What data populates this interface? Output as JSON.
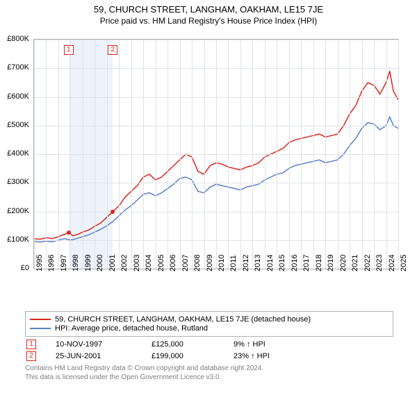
{
  "title": "59, CHURCH STREET, LANGHAM, OAKHAM, LE15 7JE",
  "subtitle": "Price paid vs. HM Land Registry's House Price Index (HPI)",
  "chart": {
    "type": "line",
    "background_color": "#ffffff",
    "grid_color": "#dfe3e8",
    "border_color": "#aeb2b7",
    "shade_color": "#eef2fa",
    "ylim": [
      0,
      800000
    ],
    "ytick_step": 100000,
    "yticks": [
      "£0",
      "£100K",
      "£200K",
      "£300K",
      "£400K",
      "£500K",
      "£600K",
      "£700K",
      "£800K"
    ],
    "xlim": [
      1995,
      2025
    ],
    "xticks": [
      1995,
      1996,
      1997,
      1998,
      1999,
      2000,
      2001,
      2002,
      2003,
      2004,
      2005,
      2006,
      2007,
      2008,
      2009,
      2010,
      2011,
      2012,
      2013,
      2014,
      2015,
      2016,
      2017,
      2018,
      2019,
      2020,
      2021,
      2022,
      2023,
      2024,
      2025
    ],
    "series": [
      {
        "name": "59, CHURCH STREET, LANGHAM, OAKHAM, LE15 7JE (detached house)",
        "color": "#d9261c",
        "line_width": 1.5,
        "data": [
          [
            1995,
            105
          ],
          [
            1995.5,
            103
          ],
          [
            1996,
            108
          ],
          [
            1996.5,
            105
          ],
          [
            1997,
            112
          ],
          [
            1997.5,
            120
          ],
          [
            1997.86,
            125
          ],
          [
            1998.2,
            115
          ],
          [
            1998.6,
            120
          ],
          [
            1999,
            128
          ],
          [
            1999.5,
            135
          ],
          [
            2000,
            148
          ],
          [
            2000.5,
            160
          ],
          [
            2001,
            180
          ],
          [
            2001.48,
            199
          ],
          [
            2002,
            220
          ],
          [
            2002.5,
            250
          ],
          [
            2003,
            270
          ],
          [
            2003.5,
            290
          ],
          [
            2004,
            320
          ],
          [
            2004.5,
            330
          ],
          [
            2005,
            310
          ],
          [
            2005.5,
            320
          ],
          [
            2006,
            340
          ],
          [
            2006.5,
            360
          ],
          [
            2007,
            380
          ],
          [
            2007.5,
            400
          ],
          [
            2008,
            390
          ],
          [
            2008.5,
            340
          ],
          [
            2009,
            330
          ],
          [
            2009.5,
            360
          ],
          [
            2010,
            370
          ],
          [
            2010.5,
            365
          ],
          [
            2011,
            355
          ],
          [
            2011.5,
            350
          ],
          [
            2012,
            345
          ],
          [
            2012.5,
            355
          ],
          [
            2013,
            360
          ],
          [
            2013.5,
            370
          ],
          [
            2014,
            390
          ],
          [
            2014.5,
            400
          ],
          [
            2015,
            410
          ],
          [
            2015.5,
            420
          ],
          [
            2016,
            440
          ],
          [
            2016.5,
            450
          ],
          [
            2017,
            455
          ],
          [
            2017.5,
            460
          ],
          [
            2018,
            465
          ],
          [
            2018.5,
            470
          ],
          [
            2019,
            460
          ],
          [
            2019.5,
            465
          ],
          [
            2020,
            470
          ],
          [
            2020.5,
            500
          ],
          [
            2021,
            540
          ],
          [
            2021.5,
            570
          ],
          [
            2022,
            620
          ],
          [
            2022.5,
            650
          ],
          [
            2023,
            640
          ],
          [
            2023.5,
            610
          ],
          [
            2024,
            650
          ],
          [
            2024.3,
            690
          ],
          [
            2024.6,
            620
          ],
          [
            2025,
            590
          ]
        ]
      },
      {
        "name": "HPI: Average price, detached house, Rutland",
        "color": "#5a7fc7",
        "line_width": 1.5,
        "data": [
          [
            1995,
            95
          ],
          [
            1995.5,
            93
          ],
          [
            1996,
            96
          ],
          [
            1996.5,
            94
          ],
          [
            1997,
            100
          ],
          [
            1997.5,
            105
          ],
          [
            1998,
            100
          ],
          [
            1998.5,
            105
          ],
          [
            1999,
            112
          ],
          [
            1999.5,
            118
          ],
          [
            2000,
            128
          ],
          [
            2000.5,
            138
          ],
          [
            2001,
            150
          ],
          [
            2001.5,
            165
          ],
          [
            2002,
            185
          ],
          [
            2002.5,
            205
          ],
          [
            2003,
            220
          ],
          [
            2003.5,
            240
          ],
          [
            2004,
            260
          ],
          [
            2004.5,
            265
          ],
          [
            2005,
            255
          ],
          [
            2005.5,
            265
          ],
          [
            2006,
            280
          ],
          [
            2006.5,
            295
          ],
          [
            2007,
            315
          ],
          [
            2007.5,
            320
          ],
          [
            2008,
            310
          ],
          [
            2008.5,
            270
          ],
          [
            2009,
            265
          ],
          [
            2009.5,
            285
          ],
          [
            2010,
            295
          ],
          [
            2010.5,
            290
          ],
          [
            2011,
            285
          ],
          [
            2011.5,
            280
          ],
          [
            2012,
            275
          ],
          [
            2012.5,
            285
          ],
          [
            2013,
            290
          ],
          [
            2013.5,
            295
          ],
          [
            2014,
            310
          ],
          [
            2014.5,
            320
          ],
          [
            2015,
            330
          ],
          [
            2015.5,
            335
          ],
          [
            2016,
            350
          ],
          [
            2016.5,
            360
          ],
          [
            2017,
            365
          ],
          [
            2017.5,
            370
          ],
          [
            2018,
            375
          ],
          [
            2018.5,
            380
          ],
          [
            2019,
            370
          ],
          [
            2019.5,
            375
          ],
          [
            2020,
            380
          ],
          [
            2020.5,
            400
          ],
          [
            2021,
            430
          ],
          [
            2021.5,
            455
          ],
          [
            2022,
            490
          ],
          [
            2022.5,
            510
          ],
          [
            2023,
            505
          ],
          [
            2023.5,
            485
          ],
          [
            2024,
            500
          ],
          [
            2024.3,
            530
          ],
          [
            2024.6,
            500
          ],
          [
            2025,
            490
          ]
        ]
      }
    ],
    "sales": [
      {
        "n": "1",
        "year": 1997.86,
        "price": 125,
        "date": "10-NOV-1997",
        "price_label": "£125,000",
        "pct": "9% ↑ HPI",
        "color": "#d9261c"
      },
      {
        "n": "2",
        "year": 2001.48,
        "price": 199,
        "date": "25-JUN-2001",
        "price_label": "£199,000",
        "pct": "23% ↑ HPI",
        "color": "#d9261c"
      }
    ],
    "shade_ranges": [
      [
        1997.86,
        2001.48
      ]
    ]
  },
  "legend": {
    "series1": "59, CHURCH STREET, LANGHAM, OAKHAM, LE15 7JE (detached house)",
    "series2": "HPI: Average price, detached house, Rutland"
  },
  "footnote1": "Contains HM Land Registry data © Crown copyright and database right 2024.",
  "footnote2": "This data is licensed under the Open Government Licence v3.0."
}
